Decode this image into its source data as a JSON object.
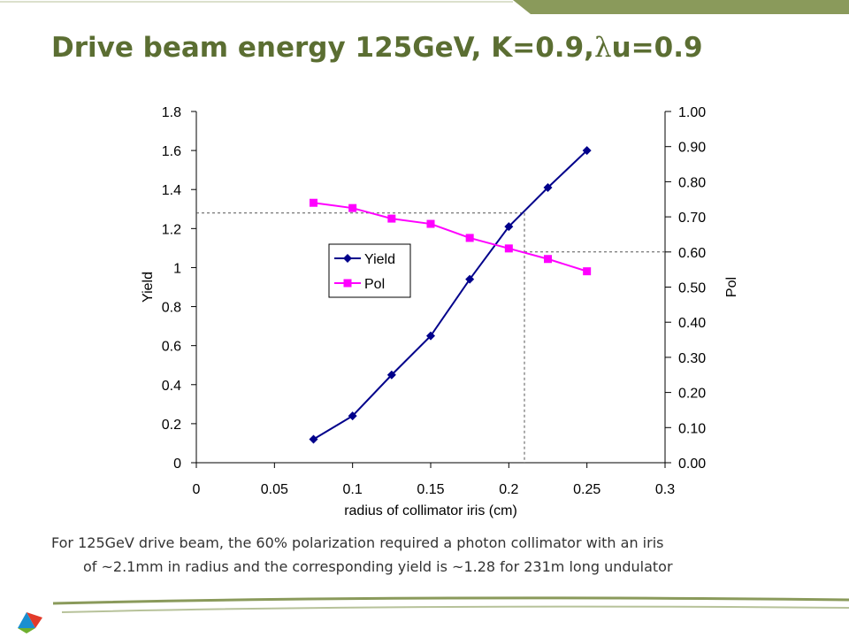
{
  "slide": {
    "title_prefix": "Drive beam energy 125GeV, K=0.9,",
    "title_lambda": "λ",
    "title_suffix": "u=0.9",
    "caption_line1": "For 125GeV drive beam, the 60% polarization required a photon collimator with an iris",
    "caption_line2": "of ~2.1mm in radius and the corresponding yield is ~1.28 for 231m long undulator"
  },
  "colors": {
    "title": "#5b6e32",
    "band": "#8a9a5b",
    "yield_series": "#00008b",
    "pol_series": "#ff00ff"
  },
  "icons": {
    "logo": "tri-color-triangle-logo"
  },
  "chart_data": {
    "type": "line",
    "xlabel": "radius of collimator iris (cm)",
    "ylabel": "Yield",
    "y2label": "Pol",
    "xlim": [
      0,
      0.3
    ],
    "ylim": [
      0,
      1.8
    ],
    "y2lim": [
      0,
      1.0
    ],
    "xticks": [
      "0",
      "0.05",
      "0.1",
      "0.15",
      "0.2",
      "0.25",
      "0.3"
    ],
    "yticks": [
      "0",
      "0.2",
      "0.4",
      "0.6",
      "0.8",
      "1",
      "1.2",
      "1.4",
      "1.6",
      "1.8"
    ],
    "y2ticks": [
      "0.00",
      "0.10",
      "0.20",
      "0.30",
      "0.40",
      "0.50",
      "0.60",
      "0.70",
      "0.80",
      "0.90",
      "1.00"
    ],
    "x": [
      0.075,
      0.1,
      0.125,
      0.15,
      0.175,
      0.2,
      0.225,
      0.25
    ],
    "series": [
      {
        "name": "Yield",
        "axis": "left",
        "marker": "diamond",
        "values": [
          0.12,
          0.24,
          0.45,
          0.65,
          0.94,
          1.21,
          1.41,
          1.6
        ]
      },
      {
        "name": "Pol",
        "axis": "right",
        "marker": "square",
        "values": [
          0.74,
          0.725,
          0.695,
          0.68,
          0.64,
          0.61,
          0.58,
          0.545
        ]
      }
    ],
    "reference": {
      "x": 0.21,
      "yield": 1.28,
      "pol": 0.6
    },
    "legend_position": "center-left",
    "grid": false
  }
}
